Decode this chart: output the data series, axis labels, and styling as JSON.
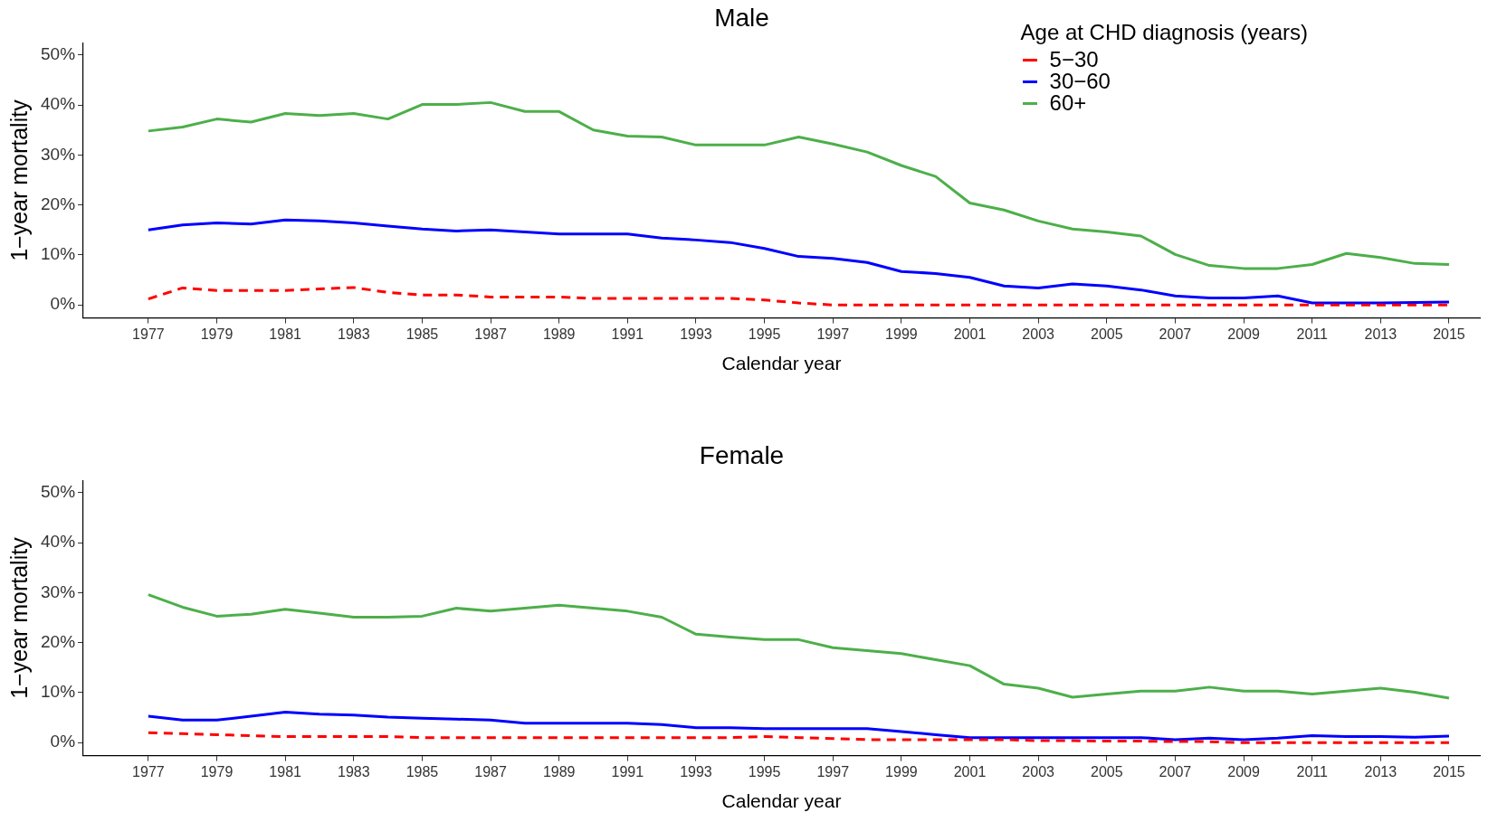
{
  "chart_data": [
    {
      "type": "line",
      "title": "Male",
      "xlabel": "Calendar year",
      "ylabel": "1−year mortality",
      "legend": "top right",
      "legend_title": "Age at CHD diagnosis (years)",
      "grid": false,
      "x": [
        1977,
        1978,
        1979,
        1980,
        1981,
        1982,
        1983,
        1984,
        1985,
        1986,
        1987,
        1988,
        1989,
        1990,
        1991,
        1992,
        1993,
        1994,
        1995,
        1996,
        1997,
        1998,
        1999,
        2000,
        2001,
        2002,
        2003,
        2004,
        2005,
        2006,
        2007,
        2008,
        2009,
        2010,
        2011,
        2012,
        2013,
        2014,
        2015
      ],
      "xlim": [
        1975.1,
        2015.9
      ],
      "xticks": [
        1977,
        1979,
        1981,
        1983,
        1985,
        1987,
        1989,
        1991,
        1993,
        1995,
        1997,
        1999,
        2001,
        2003,
        2005,
        2007,
        2009,
        2011,
        2013,
        2015
      ],
      "ylim": [
        -2.6,
        52.4
      ],
      "yticks": [
        {
          "value": 0,
          "label": "0%"
        },
        {
          "value": 10,
          "label": "10%"
        },
        {
          "value": 20,
          "label": "20%"
        },
        {
          "value": 30,
          "label": "30%"
        },
        {
          "value": 40,
          "label": "40%"
        },
        {
          "value": 50,
          "label": "50%"
        }
      ],
      "series": [
        {
          "name": "5−30",
          "color": "#ff0000",
          "line_style": "dashed",
          "values": [
            1.2,
            3.4,
            2.9,
            2.9,
            2.9,
            3.2,
            3.5,
            2.5,
            2.0,
            2.0,
            1.6,
            1.6,
            1.6,
            1.3,
            1.3,
            1.3,
            1.3,
            1.3,
            1.0,
            0.4,
            0,
            0,
            0,
            0,
            0,
            0,
            0,
            0,
            0,
            0,
            0,
            0,
            0,
            0,
            0,
            0,
            0,
            0,
            0
          ]
        },
        {
          "name": "30−60",
          "color": "#0000ff",
          "line_style": "solid",
          "values": [
            15.0,
            16.0,
            16.4,
            16.2,
            17.0,
            16.8,
            16.4,
            15.8,
            15.2,
            14.8,
            15.0,
            14.6,
            14.2,
            14.2,
            14.2,
            13.4,
            13.0,
            12.5,
            11.3,
            9.7,
            9.3,
            8.5,
            6.7,
            6.3,
            5.5,
            3.8,
            3.4,
            4.2,
            3.8,
            3.0,
            1.8,
            1.4,
            1.4,
            1.8,
            0.4,
            0.4,
            0.4,
            0.5,
            0.6
          ]
        },
        {
          "name": "60+",
          "color": "#4daf4a",
          "line_style": "solid",
          "values": [
            34.8,
            35.6,
            37.2,
            36.6,
            38.3,
            37.9,
            38.3,
            37.2,
            40.1,
            40.1,
            40.5,
            38.7,
            38.7,
            35.0,
            33.8,
            33.6,
            32.0,
            32.0,
            32.0,
            33.6,
            32.2,
            30.6,
            27.9,
            25.7,
            20.4,
            19.0,
            16.8,
            15.2,
            14.6,
            13.8,
            10.1,
            7.9,
            7.3,
            7.3,
            8.1,
            10.3,
            9.5,
            8.3,
            8.1
          ]
        }
      ]
    },
    {
      "type": "line",
      "title": "Female",
      "xlabel": "Calendar year",
      "ylabel": "1−year mortality",
      "legend": false,
      "grid": false,
      "x": [
        1977,
        1978,
        1979,
        1980,
        1981,
        1982,
        1983,
        1984,
        1985,
        1986,
        1987,
        1988,
        1989,
        1990,
        1991,
        1992,
        1993,
        1994,
        1995,
        1996,
        1997,
        1998,
        1999,
        2000,
        2001,
        2002,
        2003,
        2004,
        2005,
        2006,
        2007,
        2008,
        2009,
        2010,
        2011,
        2012,
        2013,
        2014,
        2015
      ],
      "xlim": [
        1975.1,
        2015.9
      ],
      "xticks": [
        1977,
        1979,
        1981,
        1983,
        1985,
        1987,
        1989,
        1991,
        1993,
        1995,
        1997,
        1999,
        2001,
        2003,
        2005,
        2007,
        2009,
        2011,
        2013,
        2015
      ],
      "ylim": [
        -2.6,
        52.4
      ],
      "yticks": [
        {
          "value": 0,
          "label": "0%"
        },
        {
          "value": 10,
          "label": "10%"
        },
        {
          "value": 20,
          "label": "20%"
        },
        {
          "value": 30,
          "label": "30%"
        },
        {
          "value": 40,
          "label": "40%"
        },
        {
          "value": 50,
          "label": "50%"
        }
      ],
      "series": [
        {
          "color": "#ff0000",
          "line_style": "dashed",
          "values": [
            2.0,
            1.8,
            1.6,
            1.4,
            1.2,
            1.2,
            1.2,
            1.2,
            1.0,
            1.0,
            1.0,
            1.0,
            1.0,
            1.0,
            1.0,
            1.0,
            1.0,
            1.0,
            1.2,
            1.0,
            0.8,
            0.6,
            0.6,
            0.6,
            0.6,
            0.6,
            0.4,
            0.4,
            0.3,
            0.3,
            0.2,
            0.2,
            0,
            0,
            0,
            0,
            0,
            0,
            0
          ]
        },
        {
          "color": "#0000ff",
          "line_style": "solid",
          "values": [
            5.3,
            4.5,
            4.5,
            5.3,
            6.1,
            5.7,
            5.5,
            5.1,
            4.9,
            4.7,
            4.5,
            3.9,
            3.9,
            3.9,
            3.9,
            3.6,
            3.0,
            3.0,
            2.8,
            2.8,
            2.8,
            2.8,
            2.2,
            1.6,
            1.0,
            1.0,
            1.0,
            1.0,
            1.0,
            1.0,
            0.6,
            0.9,
            0.6,
            0.9,
            1.4,
            1.2,
            1.2,
            1.1,
            1.3
          ]
        },
        {
          "color": "#4daf4a",
          "line_style": "solid",
          "values": [
            29.6,
            27.1,
            25.3,
            25.7,
            26.7,
            25.9,
            25.1,
            25.1,
            25.3,
            26.9,
            26.3,
            26.9,
            27.5,
            26.9,
            26.3,
            25.1,
            21.7,
            21.1,
            20.6,
            20.6,
            19.0,
            18.4,
            17.8,
            16.6,
            15.4,
            11.7,
            10.9,
            9.1,
            9.7,
            10.3,
            10.3,
            11.1,
            10.3,
            10.3,
            9.7,
            10.3,
            10.9,
            10.1,
            8.9
          ]
        }
      ]
    }
  ]
}
